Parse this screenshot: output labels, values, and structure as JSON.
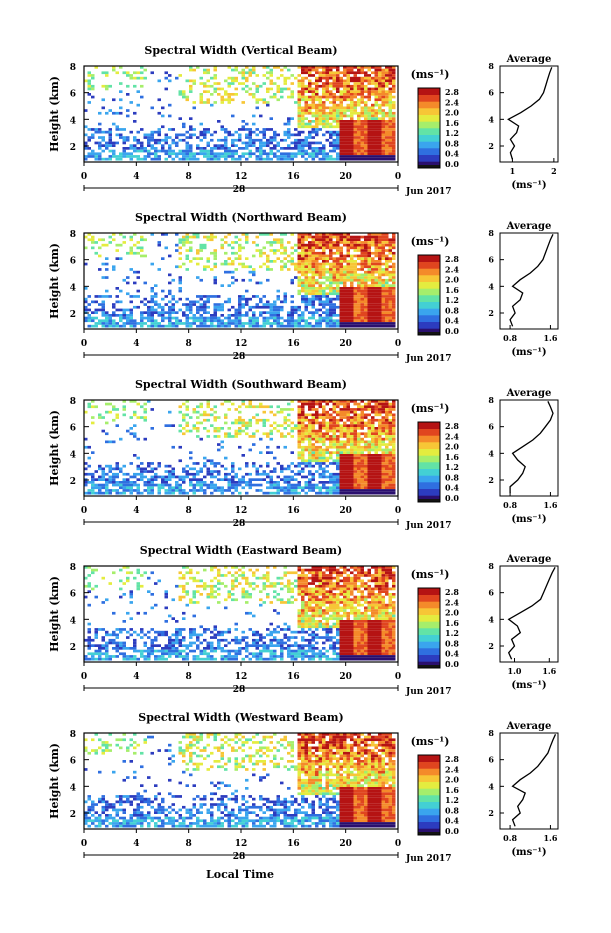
{
  "colors": {
    "scale": [
      "#2a0f6e",
      "#2c3cbf",
      "#2f6fe0",
      "#3aa5ee",
      "#43d0d4",
      "#62e3a6",
      "#a6ee6b",
      "#e4ec3f",
      "#f7c636",
      "#f48a2a",
      "#e0451f",
      "#b51313"
    ],
    "noise_floor": "#141414"
  },
  "chart_data": [
    {
      "type": "heatmap",
      "title": "Spectral Width (Vertical Beam)",
      "ylabel": "Height (km)",
      "yticks": [
        "2",
        "4",
        "6",
        "8"
      ],
      "xticks": [
        "0",
        "4",
        "8",
        "12",
        "16",
        "20",
        "0"
      ],
      "day_label": "28",
      "date_label": "Jun 2017",
      "colorbar_unit": "(ms⁻¹)",
      "colorbar_ticks": [
        "2.8",
        "2.4",
        "2.0",
        "1.6",
        "1.2",
        "0.8",
        "0.4",
        "0.0"
      ],
      "profile": {
        "title": "Average",
        "xlabel": "(ms⁻¹)",
        "xticks": [
          "1",
          "2"
        ],
        "xlim": [
          0.7,
          2.1
        ],
        "yticks": [
          "2",
          "4",
          "6",
          "8"
        ],
        "ylim": [
          0.8,
          8.0
        ],
        "heights": [
          1.0,
          1.5,
          2.0,
          2.5,
          3.0,
          3.5,
          4.0,
          4.5,
          5.0,
          5.5,
          6.0,
          6.5,
          7.0,
          7.5,
          7.9
        ],
        "values": [
          1.0,
          0.95,
          1.05,
          0.95,
          1.1,
          1.15,
          0.9,
          1.2,
          1.45,
          1.65,
          1.75,
          1.8,
          1.85,
          1.9,
          1.95
        ]
      }
    },
    {
      "type": "heatmap",
      "title": "Spectral Width (Northward Beam)",
      "ylabel": "Height (km)",
      "yticks": [
        "2",
        "4",
        "6",
        "8"
      ],
      "xticks": [
        "0",
        "4",
        "8",
        "12",
        "16",
        "20",
        "0"
      ],
      "day_label": "28",
      "date_label": "Jun 2017",
      "colorbar_unit": "(ms⁻¹)",
      "colorbar_ticks": [
        "2.8",
        "2.4",
        "2.0",
        "1.6",
        "1.2",
        "0.8",
        "0.4",
        "0.0"
      ],
      "profile": {
        "title": "Average",
        "xlabel": "(ms⁻¹)",
        "xticks": [
          "0.8",
          "1.6"
        ],
        "xlim": [
          0.6,
          1.75
        ],
        "yticks": [
          "2",
          "4",
          "6",
          "8"
        ],
        "ylim": [
          0.8,
          8.0
        ],
        "heights": [
          1.0,
          1.5,
          2.0,
          2.5,
          3.0,
          3.5,
          4.0,
          4.5,
          5.0,
          5.5,
          6.0,
          6.5,
          7.0,
          7.5,
          7.9
        ],
        "values": [
          0.85,
          0.8,
          0.9,
          0.85,
          1.0,
          1.05,
          0.85,
          1.0,
          1.2,
          1.35,
          1.45,
          1.5,
          1.55,
          1.6,
          1.65
        ]
      }
    },
    {
      "type": "heatmap",
      "title": "Spectral Width (Southward Beam)",
      "ylabel": "Height (km)",
      "yticks": [
        "2",
        "4",
        "6",
        "8"
      ],
      "xticks": [
        "0",
        "4",
        "8",
        "12",
        "16",
        "20",
        "0"
      ],
      "day_label": "28",
      "date_label": "Jun 2017",
      "colorbar_unit": "(ms⁻¹)",
      "colorbar_ticks": [
        "2.8",
        "2.4",
        "2.0",
        "1.6",
        "1.2",
        "0.8",
        "0.4",
        "0.0"
      ],
      "profile": {
        "title": "Average",
        "xlabel": "(ms⁻¹)",
        "xticks": [
          "0.8",
          "1.6"
        ],
        "xlim": [
          0.6,
          1.75
        ],
        "yticks": [
          "2",
          "4",
          "6",
          "8"
        ],
        "ylim": [
          0.8,
          8.0
        ],
        "heights": [
          1.0,
          1.5,
          2.0,
          2.5,
          3.0,
          3.5,
          4.0,
          4.5,
          5.0,
          5.5,
          6.0,
          6.5,
          7.0,
          7.5,
          7.9
        ],
        "values": [
          0.8,
          0.8,
          0.95,
          1.05,
          1.1,
          0.95,
          0.85,
          1.05,
          1.25,
          1.4,
          1.5,
          1.6,
          1.65,
          1.6,
          1.55
        ]
      }
    },
    {
      "type": "heatmap",
      "title": "Spectral Width (Eastward Beam)",
      "ylabel": "Height (km)",
      "yticks": [
        "2",
        "4",
        "6",
        "8"
      ],
      "xticks": [
        "0",
        "4",
        "8",
        "12",
        "16",
        "20",
        "0"
      ],
      "day_label": "28",
      "date_label": "Jun 2017",
      "colorbar_unit": "(ms⁻¹)",
      "colorbar_ticks": [
        "2.8",
        "2.4",
        "2.0",
        "1.6",
        "1.2",
        "0.8",
        "0.4",
        "0.0"
      ],
      "profile": {
        "title": "Average",
        "xlabel": "(ms⁻¹)",
        "xticks": [
          "1.0",
          "1.6"
        ],
        "xlim": [
          0.75,
          1.75
        ],
        "yticks": [
          "2",
          "4",
          "6",
          "8"
        ],
        "ylim": [
          0.8,
          8.0
        ],
        "heights": [
          1.0,
          1.5,
          2.0,
          2.5,
          3.0,
          3.5,
          4.0,
          4.5,
          5.0,
          5.5,
          6.0,
          6.5,
          7.0,
          7.5,
          7.9
        ],
        "values": [
          0.95,
          0.9,
          1.0,
          0.95,
          1.1,
          1.05,
          0.9,
          1.1,
          1.3,
          1.45,
          1.5,
          1.55,
          1.6,
          1.65,
          1.7
        ]
      }
    },
    {
      "type": "heatmap",
      "title": "Spectral Width (Westward Beam)",
      "ylabel": "Height (km)",
      "yticks": [
        "2",
        "4",
        "6",
        "8"
      ],
      "xticks": [
        "0",
        "4",
        "8",
        "12",
        "16",
        "20",
        "0"
      ],
      "day_label": "28",
      "date_label": "Jun 2017",
      "colorbar_unit": "(ms⁻¹)",
      "colorbar_ticks": [
        "2.8",
        "2.4",
        "2.0",
        "1.6",
        "1.2",
        "0.8",
        "0.4",
        "0.0"
      ],
      "profile": {
        "title": "Average",
        "xlabel": "(ms⁻¹)",
        "xticks": [
          "0.8",
          "1.6"
        ],
        "xlim": [
          0.6,
          1.75
        ],
        "yticks": [
          "2",
          "4",
          "6",
          "8"
        ],
        "ylim": [
          0.8,
          8.0
        ],
        "heights": [
          1.0,
          1.5,
          2.0,
          2.5,
          3.0,
          3.5,
          4.0,
          4.5,
          5.0,
          5.5,
          6.0,
          6.5,
          7.0,
          7.5,
          7.9
        ],
        "values": [
          0.9,
          0.85,
          1.0,
          0.95,
          1.05,
          1.1,
          0.85,
          1.0,
          1.2,
          1.35,
          1.45,
          1.55,
          1.6,
          1.65,
          1.7
        ]
      }
    }
  ],
  "footer": {
    "xlabel": "Local Time"
  }
}
